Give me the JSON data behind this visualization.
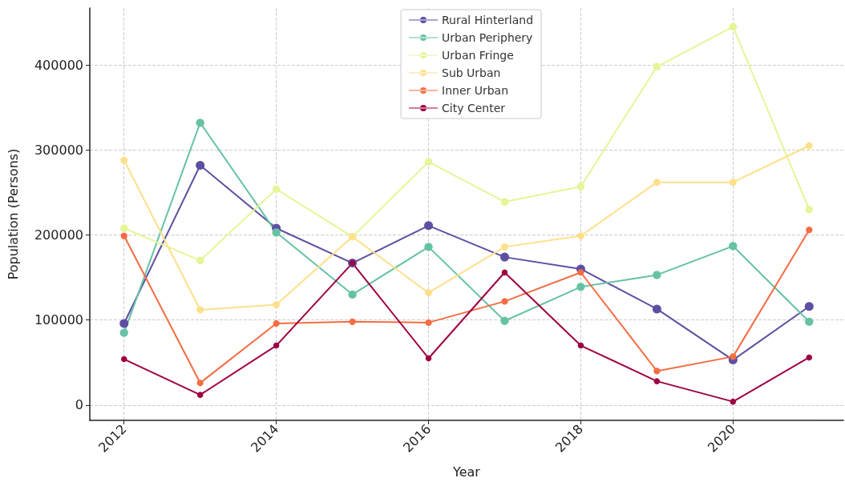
{
  "chart_data": {
    "type": "line",
    "xlabel": "Year",
    "ylabel": "Population (Persons)",
    "x": [
      2012,
      2013,
      2014,
      2015,
      2016,
      2017,
      2018,
      2019,
      2020,
      2021
    ],
    "series": [
      {
        "name": "Rural Hinterland",
        "color": "#5e4fa2",
        "values": [
          96000,
          282000,
          208000,
          167000,
          211000,
          174000,
          160000,
          113000,
          53000,
          116000
        ]
      },
      {
        "name": "Urban Periphery",
        "color": "#66c2a5",
        "values": [
          85000,
          332000,
          203000,
          130000,
          186000,
          99000,
          139000,
          153000,
          187000,
          98000
        ]
      },
      {
        "name": "Urban Fringe",
        "color": "#e6f598",
        "values": [
          208000,
          170000,
          254000,
          198000,
          286000,
          239000,
          257000,
          398000,
          445000,
          230000
        ]
      },
      {
        "name": "Sub Urban",
        "color": "#fee08b",
        "values": [
          288000,
          112000,
          118000,
          198000,
          132000,
          186000,
          199000,
          262000,
          262000,
          305000
        ]
      },
      {
        "name": "Inner Urban",
        "color": "#f46d43",
        "values": [
          199000,
          26000,
          96000,
          98000,
          97000,
          122000,
          156000,
          40000,
          57000,
          206000
        ]
      },
      {
        "name": "City Center",
        "color": "#9e0142",
        "values": [
          54000,
          12000,
          70000,
          167000,
          55000,
          156000,
          70000,
          28000,
          4000,
          56000
        ]
      }
    ],
    "xlim": [
      2011.55,
      2021.45
    ],
    "xticks": [
      2012,
      2014,
      2016,
      2018,
      2020
    ],
    "ylim": [
      -18000,
      467000
    ],
    "yticks": [
      0,
      100000,
      200000,
      300000,
      400000
    ],
    "grid": true,
    "legend": "top",
    "marker": "circle",
    "line_style": "solid"
  }
}
